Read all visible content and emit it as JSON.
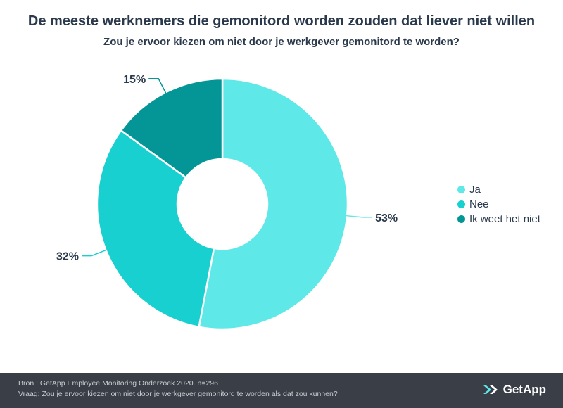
{
  "header": {
    "title": "De meeste werknemers die gemonitord worden zouden dat liever niet willen",
    "subtitle": "Zou je ervoor kiezen om niet door je werkgever gemonitord te worden?"
  },
  "chart_data": {
    "type": "pie",
    "donut": true,
    "title": "De meeste werknemers die gemonitord worden zouden dat liever niet willen",
    "subtitle": "Zou je ervoor kiezen om niet door je werkgever gemonitord te worden?",
    "categories": [
      "Ja",
      "Nee",
      "Ik weet het niet"
    ],
    "values": [
      53,
      32,
      15
    ],
    "labels": [
      "53%",
      "32%",
      "15%"
    ],
    "colors": [
      "#5ee8e8",
      "#18d0cf",
      "#049696"
    ],
    "legend": "right"
  },
  "legend": {
    "items": [
      {
        "label": "Ja",
        "color": "#5ee8e8"
      },
      {
        "label": "Nee",
        "color": "#18d0cf"
      },
      {
        "label": "Ik weet het niet",
        "color": "#049696"
      }
    ]
  },
  "footer": {
    "source": "Bron : GetApp Employee Monitoring Onderzoek 2020. n=296",
    "question": "Vraag: Zou je ervoor kiezen om niet door je werkgever gemonitord te worden als dat zou kunnen?",
    "logo_text": "GetApp",
    "logo_icon": "getapp-chevron-icon",
    "background": "#3a3f47"
  }
}
